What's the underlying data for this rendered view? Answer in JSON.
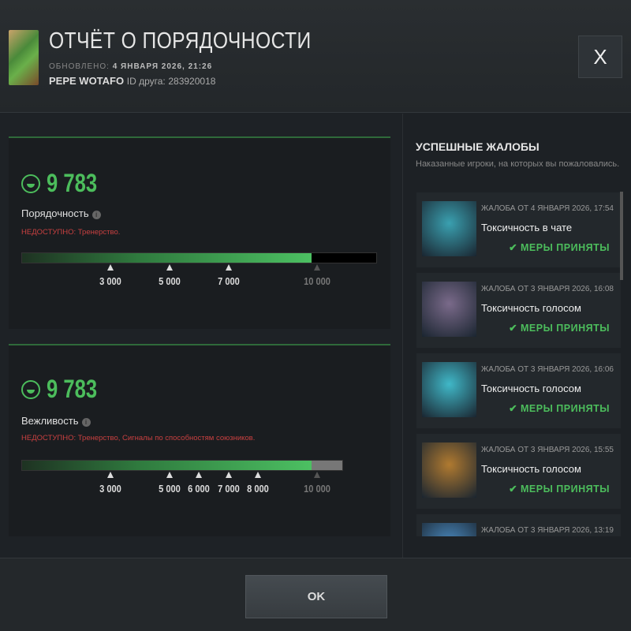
{
  "header": {
    "title": "ОТЧЁТ О ПОРЯДОЧНОСТИ",
    "updated_label": "ОБНОВЛЕНО:",
    "updated_value": "4 ЯНВАРЯ 2026, 21:26",
    "username": "PEPE WOTAFO",
    "friend_id_label": "ID друга:",
    "friend_id": "283920018",
    "close_label": "X"
  },
  "scores": [
    {
      "value": "9 783",
      "value_num": 9783,
      "label": "Порядочность",
      "warn_label": "НЕДОСТУПНО:",
      "warn_text": "Тренерство.",
      "ticks": [
        {
          "v": 3000,
          "label": "3 000"
        },
        {
          "v": 5000,
          "label": "5 000"
        },
        {
          "v": 7000,
          "label": "7 000"
        },
        {
          "v": 10000,
          "label": "10 000",
          "dim": true
        }
      ]
    },
    {
      "value": "9 783",
      "value_num": 9783,
      "label": "Вежливость",
      "warn_label": "НЕДОСТУПНО:",
      "warn_text": "Тренерство, Сигналы по способностям союзников.",
      "ticks": [
        {
          "v": 3000,
          "label": "3 000"
        },
        {
          "v": 5000,
          "label": "5 000"
        },
        {
          "v": 6000,
          "label": "6 000"
        },
        {
          "v": 7000,
          "label": "7 000"
        },
        {
          "v": 8000,
          "label": "8 000"
        },
        {
          "v": 10000,
          "label": "10 000",
          "dim": true
        }
      ]
    }
  ],
  "reports": {
    "title": "УСПЕШНЫЕ ЖАЛОБЫ",
    "subtitle": "Наказанные игроки, на которых вы пожаловались.",
    "items": [
      {
        "date": "ЖАЛОБА ОТ 4 ЯНВАРЯ 2026, 17:54",
        "reason": "Токсичность в чате",
        "status": "✔ МЕРЫ ПРИНЯТЫ",
        "hero_color": "#3aa0b0"
      },
      {
        "date": "ЖАЛОБА ОТ 3 ЯНВАРЯ 2026, 16:08",
        "reason": "Токсичность голосом",
        "status": "✔ МЕРЫ ПРИНЯТЫ",
        "hero_color": "#7a6a8a"
      },
      {
        "date": "ЖАЛОБА ОТ 3 ЯНВАРЯ 2026, 16:06",
        "reason": "Токсичность голосом",
        "status": "✔ МЕРЫ ПРИНЯТЫ",
        "hero_color": "#40b8c8"
      },
      {
        "date": "ЖАЛОБА ОТ 3 ЯНВАРЯ 2026, 15:55",
        "reason": "Токсичность голосом",
        "status": "✔ МЕРЫ ПРИНЯТЫ",
        "hero_color": "#b07a30"
      },
      {
        "date": "ЖАЛОБА ОТ 3 ЯНВАРЯ 2026, 13:19",
        "reason": "",
        "status": "",
        "hero_color": "#4a8ac0"
      }
    ]
  },
  "footer": {
    "ok_label": "OK"
  }
}
